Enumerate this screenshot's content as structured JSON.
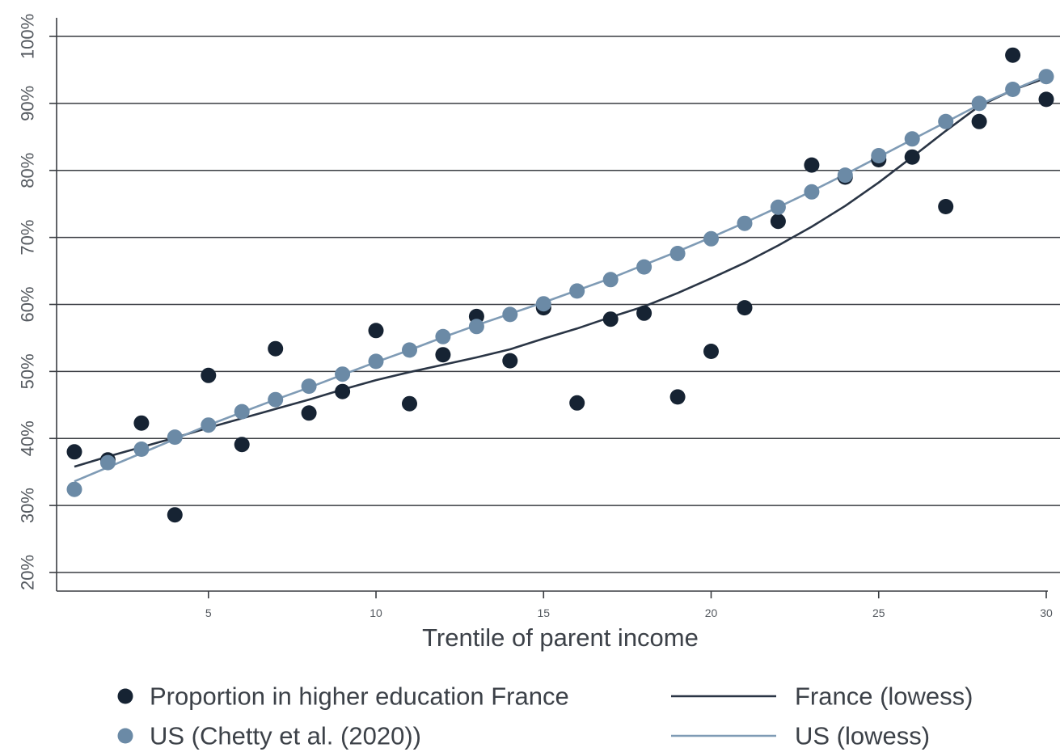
{
  "chart_data": {
    "type": "scatter",
    "xlabel": "Trentile of parent income",
    "ylabel": "",
    "xlim": [
      1,
      30
    ],
    "ylim": [
      20,
      100
    ],
    "x_ticks": [
      5,
      10,
      15,
      20,
      25,
      30
    ],
    "y_ticks": [
      20,
      30,
      40,
      50,
      60,
      70,
      80,
      90,
      100
    ],
    "y_tick_labels": [
      "20%",
      "30%",
      "40%",
      "50%",
      "60%",
      "70%",
      "80%",
      "90%",
      "100%"
    ],
    "grid": "horizontal",
    "legend_position": "bottom",
    "x": [
      1,
      2,
      3,
      4,
      5,
      6,
      7,
      8,
      9,
      10,
      11,
      12,
      13,
      14,
      15,
      16,
      17,
      18,
      19,
      20,
      21,
      22,
      23,
      24,
      25,
      26,
      27,
      28,
      29,
      30
    ],
    "series": [
      {
        "name": "Proportion in higher education France",
        "kind": "points",
        "color": "#162333",
        "values": [
          38.0,
          36.8,
          42.3,
          28.6,
          49.4,
          39.1,
          53.4,
          43.8,
          47.0,
          56.1,
          45.2,
          52.5,
          58.2,
          51.6,
          59.5,
          45.3,
          57.8,
          58.7,
          46.2,
          53.0,
          59.5,
          72.4,
          80.8,
          79.0,
          81.6,
          82.0,
          74.6,
          87.3,
          97.2,
          90.6
        ]
      },
      {
        "name": "US (Chetty et al. (2020))",
        "kind": "points",
        "color": "#6b8aa6",
        "values": [
          32.4,
          36.4,
          38.4,
          40.2,
          42.0,
          44.0,
          45.8,
          47.8,
          49.6,
          51.5,
          53.2,
          55.2,
          56.7,
          58.5,
          60.1,
          62.0,
          63.7,
          65.6,
          67.6,
          69.8,
          72.1,
          74.5,
          76.8,
          79.3,
          82.2,
          84.7,
          87.3,
          90.0,
          92.1,
          94.0
        ]
      },
      {
        "name": "France (lowess)",
        "kind": "line",
        "color": "#2a3545",
        "values": [
          35.8,
          37.3,
          38.7,
          40.1,
          41.6,
          43.0,
          44.4,
          45.8,
          47.3,
          48.7,
          49.9,
          51.0,
          52.1,
          53.3,
          54.9,
          56.4,
          58.1,
          59.7,
          61.7,
          63.9,
          66.2,
          68.8,
          71.6,
          74.7,
          78.2,
          82.0,
          85.9,
          89.6,
          92.0,
          93.8
        ]
      },
      {
        "name": "US (lowess)",
        "kind": "line",
        "color": "#7f9bb5",
        "values": [
          33.6,
          35.7,
          37.8,
          39.9,
          42.0,
          43.9,
          45.8,
          47.6,
          49.5,
          51.4,
          53.2,
          55.1,
          56.9,
          58.6,
          60.3,
          62.1,
          63.9,
          65.9,
          67.9,
          70.0,
          72.2,
          74.5,
          76.9,
          79.4,
          82.0,
          84.6,
          87.2,
          89.8,
          92.0,
          94.1
        ]
      }
    ],
    "legend": [
      {
        "label": "Proportion in higher education France",
        "symbol": "dot",
        "color": "#162333"
      },
      {
        "label": "France (lowess)",
        "symbol": "line",
        "color": "#2a3545"
      },
      {
        "label": "US (Chetty et al. (2020))",
        "symbol": "dot",
        "color": "#6b8aa6"
      },
      {
        "label": "US (lowess)",
        "symbol": "line",
        "color": "#7f9bb5"
      }
    ]
  }
}
